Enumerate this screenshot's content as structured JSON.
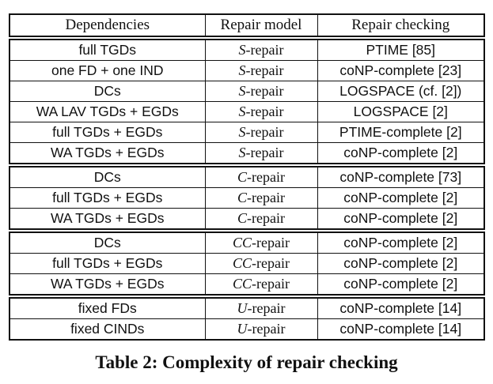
{
  "table": {
    "headers": [
      "Dependencies",
      "Repair model",
      "Repair checking"
    ],
    "groups": [
      [
        {
          "dep": "full TGDs",
          "sym": "S",
          "model": "-repair",
          "check": "PTIME [85]"
        },
        {
          "dep": "one FD + one IND",
          "sym": "S",
          "model": "-repair",
          "check": "coNP-complete [23]"
        },
        {
          "dep": "DCs",
          "sym": "S",
          "model": "-repair",
          "check": "LOGSPACE (cf. [2])"
        },
        {
          "dep": "WA LAV TGDs + EGDs",
          "sym": "S",
          "model": "-repair",
          "check": "LOGSPACE [2]"
        },
        {
          "dep": "full TGDs + EGDs",
          "sym": "S",
          "model": "-repair",
          "check": "PTIME-complete [2]"
        },
        {
          "dep": "WA TGDs + EGDs",
          "sym": "S",
          "model": "-repair",
          "check": "coNP-complete [2]"
        }
      ],
      [
        {
          "dep": "DCs",
          "sym": "C",
          "model": "-repair",
          "check": "coNP-complete [73]"
        },
        {
          "dep": "full TGDs + EGDs",
          "sym": "C",
          "model": "-repair",
          "check": "coNP-complete [2]"
        },
        {
          "dep": "WA TGDs + EGDs",
          "sym": "C",
          "model": "-repair",
          "check": "coNP-complete [2]"
        }
      ],
      [
        {
          "dep": "DCs",
          "sym": "CC",
          "model": "-repair",
          "check": "coNP-complete [2]"
        },
        {
          "dep": "full TGDs + EGDs",
          "sym": "CC",
          "model": "-repair",
          "check": "coNP-complete [2]"
        },
        {
          "dep": "WA TGDs + EGDs",
          "sym": "CC",
          "model": "-repair",
          "check": "coNP-complete [2]"
        }
      ],
      [
        {
          "dep": "fixed FDs",
          "sym": "U",
          "model": "-repair",
          "check": "coNP-complete [14]"
        },
        {
          "dep": "fixed CINDs",
          "sym": "U",
          "model": "-repair",
          "check": "coNP-complete [14]"
        }
      ]
    ]
  },
  "caption": "Table 2: Complexity of repair checking"
}
